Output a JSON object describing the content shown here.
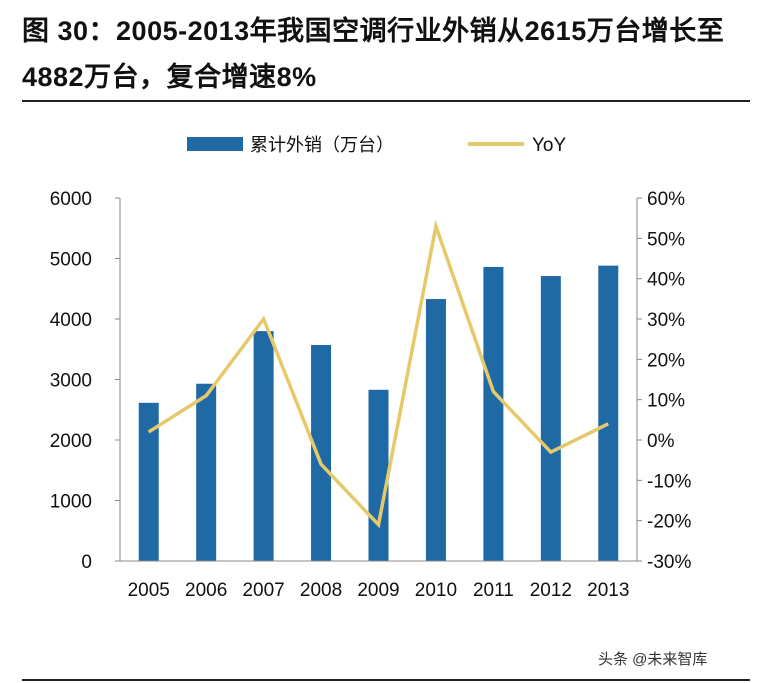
{
  "title": "图 30：2005-2013年我国空调行业外销从2615万台增长至4882万台，复合增速8%",
  "watermark": "头条 @未来智库",
  "chart_data": {
    "type": "bar+line",
    "categories": [
      "2005",
      "2006",
      "2007",
      "2008",
      "2009",
      "2010",
      "2011",
      "2012",
      "2013"
    ],
    "series": [
      {
        "name": "累计外销（万台）",
        "type": "bar",
        "axis": "left",
        "color": "#1f6aa5",
        "values": [
          2615,
          2930,
          3800,
          3570,
          2830,
          4330,
          4860,
          4710,
          4882
        ]
      },
      {
        "name": "YoY",
        "type": "line",
        "axis": "right",
        "color": "#e6c96a",
        "values": [
          2,
          11,
          30,
          -6,
          -21,
          53,
          12,
          -3,
          4
        ]
      }
    ],
    "left_axis": {
      "ylim": [
        0,
        6000
      ],
      "ticks": [
        "0",
        "1000",
        "2000",
        "3000",
        "4000",
        "5000",
        "6000"
      ]
    },
    "right_axis": {
      "ylim": [
        -30,
        60
      ],
      "ticks": [
        "-30%",
        "-20%",
        "-10%",
        "0%",
        "10%",
        "20%",
        "30%",
        "40%",
        "50%",
        "60%"
      ]
    },
    "legend": "top",
    "grid": false
  }
}
